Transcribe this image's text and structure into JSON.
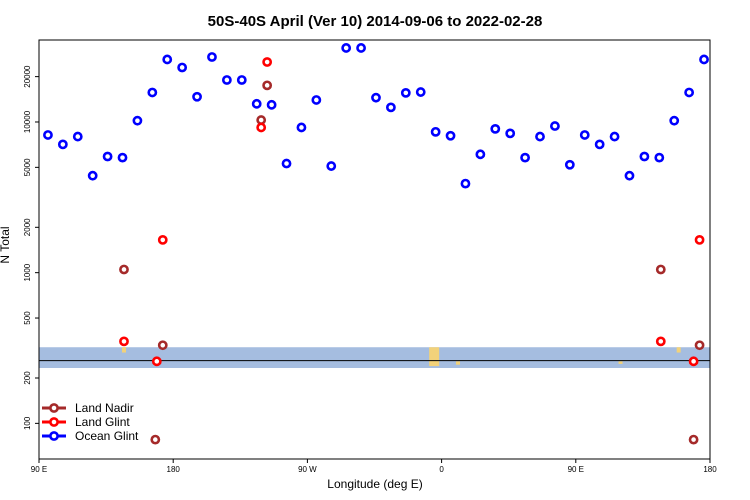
{
  "chart_data": {
    "type": "scatter",
    "title": "50S-40S April (Ver 10)   2014-09-06 to 2022-02-28",
    "xlabel": "Longitude (deg E)",
    "ylabel": "N Total",
    "xlim": [
      90,
      540
    ],
    "ylim": [
      58,
      35000
    ],
    "y_scale": "log",
    "x_ticks": [
      {
        "value": 90,
        "label": "90 E"
      },
      {
        "value": 180,
        "label": "180"
      },
      {
        "value": 270,
        "label": "90 W"
      },
      {
        "value": 360,
        "label": "0"
      },
      {
        "value": 450,
        "label": "90 E"
      },
      {
        "value": 540,
        "label": "180"
      }
    ],
    "y_ticks": [
      {
        "value": 100,
        "label": "100"
      },
      {
        "value": 200,
        "label": "200"
      },
      {
        "value": 500,
        "label": "500"
      },
      {
        "value": 1000,
        "label": "1000"
      },
      {
        "value": 2000,
        "label": "2000"
      },
      {
        "value": 5000,
        "label": "5000"
      },
      {
        "value": 10000,
        "label": "10000"
      },
      {
        "value": 20000,
        "label": "20000"
      }
    ],
    "band": {
      "y_low": 233,
      "y_high": 320,
      "line_y": 261,
      "color": "#a5bde0"
    },
    "band_marks": [
      {
        "x": 147,
        "y_low": 295,
        "y_high": 320
      },
      {
        "x": 355,
        "y_low": 240,
        "y_high": 320
      },
      {
        "x": 371,
        "y_low": 245,
        "y_high": 258
      },
      {
        "x": 480,
        "y_low": 248,
        "y_high": 258
      },
      {
        "x": 519,
        "y_low": 295,
        "y_high": 320
      }
    ],
    "legend": {
      "position": "bottom-left"
    },
    "series": [
      {
        "name": "Land Nadir",
        "color": "#a52a2a",
        "x": [
          147,
          173,
          239,
          243,
          507,
          533
        ],
        "y": [
          1050,
          330,
          10300,
          17500,
          1050,
          330
        ],
        "extra": [
          {
            "x": 168,
            "y": 78
          },
          {
            "x": 529,
            "y": 78
          }
        ]
      },
      {
        "name": "Land Glint",
        "color": "#ff0000",
        "x": [
          147,
          169,
          173,
          239,
          243,
          507,
          529,
          533
        ],
        "y": [
          350,
          258,
          1650,
          9200,
          25000,
          350,
          258,
          1650
        ]
      },
      {
        "name": "Ocean Glint",
        "color": "#0000ff",
        "x": [
          96,
          106,
          116,
          126,
          136,
          146,
          156,
          166,
          176,
          186,
          196,
          206,
          216,
          226,
          236,
          246,
          256,
          266,
          276,
          286,
          296,
          306,
          316,
          326,
          336,
          346,
          356,
          366,
          376,
          386,
          396,
          406,
          416,
          426,
          436,
          446,
          456,
          466,
          476,
          486,
          496,
          506,
          516,
          526,
          536
        ],
        "y": [
          8200,
          7100,
          8000,
          4400,
          5900,
          5800,
          10200,
          15700,
          26000,
          23000,
          14700,
          27000,
          19000,
          19000,
          13200,
          13000,
          5300,
          9200,
          14000,
          5100,
          31000,
          31000,
          14500,
          12500,
          15600,
          15800,
          8600,
          8100,
          3900,
          6100,
          9000,
          8400,
          5800,
          8000,
          9400,
          5200,
          8200,
          7100,
          8000,
          4400,
          5900,
          5800,
          10200,
          15700,
          26000
        ]
      }
    ]
  }
}
